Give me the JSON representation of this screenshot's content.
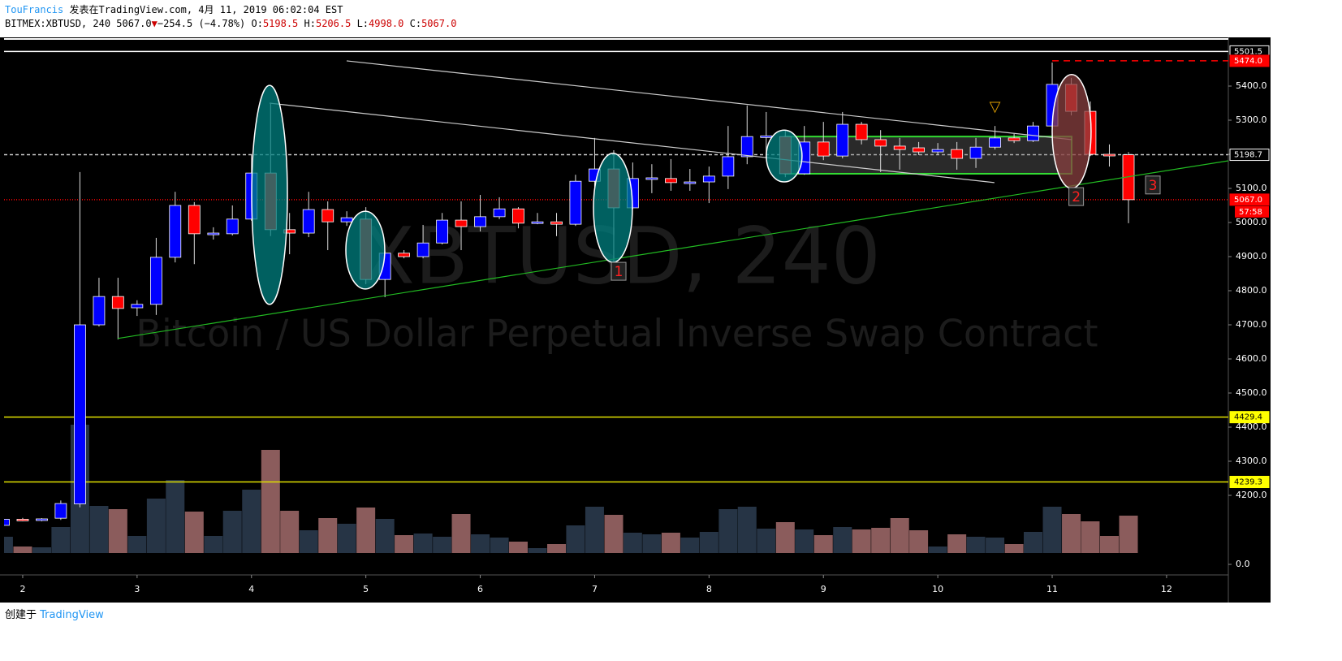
{
  "header": {
    "author": "TouFrancis",
    "published": "发表在TradingView.com, 4月 11, 2019 06:02:04 EST",
    "symbol": "BITMEX:XBTUSD, 240",
    "last": "5067.0",
    "arrow": "▼",
    "change": "−254.5 (−4.78%)",
    "o_label": "O:",
    "o": "5198.5",
    "h_label": "H:",
    "h": "5206.5",
    "l_label": "L:",
    "l": "4998.0",
    "c_label": "C:",
    "c": "5067.0"
  },
  "footer": {
    "created": "创建于",
    "brand": "TradingView"
  },
  "chart_data": {
    "type": "candlestick",
    "watermark": "XBTUSD, 240",
    "subtitle": "Bitcoin / US Dollar Perpetual Inverse Swap Contract",
    "up_color": "#0000ff",
    "down_color": "#ff0000",
    "volume_up_color": "#2a3a4d",
    "volume_down_color": "#9a6666",
    "x": [
      1.833,
      2,
      2.167,
      2.333,
      2.5,
      2.667,
      2.833,
      3,
      3.167,
      3.333,
      3.5,
      3.667,
      3.833,
      4,
      4.167,
      4.333,
      4.5,
      4.667,
      4.833,
      5,
      5.167,
      5.333,
      5.5,
      5.667,
      5.833,
      6,
      6.167,
      6.333,
      6.5,
      6.667,
      6.833,
      7,
      7.167,
      7.333,
      7.5,
      7.667,
      7.833,
      8,
      8.167,
      8.333,
      8.5,
      8.667,
      8.833,
      9,
      9.167,
      9.333,
      9.5,
      9.667,
      9.833,
      10,
      10.167,
      10.333,
      10.5,
      10.667,
      10.833,
      11,
      11.167,
      11.333,
      11.5,
      11.667
    ],
    "open": [
      4112,
      4130,
      4127,
      4133,
      4175,
      4700,
      4783,
      4750,
      4760,
      4898,
      5050,
      4967,
      4967,
      5010,
      5145,
      4979,
      4969,
      5038,
      5002,
      5010,
      4833,
      4910,
      4900,
      4940,
      5007,
      4988,
      5017,
      5040,
      4998,
      5002,
      4995,
      5121,
      5157,
      5043,
      5129,
      5129,
      5117,
      5119,
      5136,
      5193,
      5252,
      5252,
      5143,
      5236,
      5195,
      5288,
      5243,
      5224,
      5219,
      5207,
      5214,
      5188,
      5221,
      5248,
      5240,
      5283,
      5405,
      5326,
      5200,
      5198.5
    ],
    "high": [
      4135,
      4134,
      4133,
      4185,
      5148,
      4838,
      4838,
      4772,
      4955,
      5090,
      5060,
      4986,
      5050,
      5200,
      5348,
      5028,
      5090,
      5062,
      5033,
      5045,
      4917,
      4919,
      4993,
      5028,
      5062,
      5081,
      5074,
      5045,
      5028,
      5028,
      5140,
      5248,
      5212,
      5176,
      5171,
      5186,
      5157,
      5164,
      5283,
      5343,
      5324,
      5271,
      5283,
      5295,
      5324,
      5295,
      5271,
      5248,
      5236,
      5233,
      5236,
      5248,
      5283,
      5260,
      5295,
      5469,
      5424,
      5355,
      5229,
      5206.5
    ],
    "low": [
      4105,
      4124,
      4124,
      4128,
      4165,
      4695,
      4657,
      4726,
      4729,
      4883,
      4878,
      4950,
      4962,
      5005,
      4960,
      4907,
      4957,
      4919,
      4990,
      4819,
      4781,
      4895,
      4895,
      4936,
      4919,
      4974,
      5010,
      4983,
      4995,
      4960,
      4990,
      5105,
      4881,
      5040,
      5086,
      5093,
      5093,
      5057,
      5098,
      5171,
      5188,
      5133,
      5140,
      5183,
      5188,
      5229,
      5148,
      5155,
      5198,
      5198,
      5155,
      5160,
      5214,
      5233,
      5236,
      5271,
      5314,
      5195,
      5164,
      4998
    ],
    "close": [
      4130,
      4126,
      4131,
      4176,
      4700,
      4783,
      4748,
      4760,
      4898,
      5050,
      4967,
      4969,
      5010,
      5145,
      4979,
      4969,
      5038,
      5002,
      5014,
      4833,
      4910,
      4900,
      4940,
      5007,
      4988,
      5017,
      5040,
      4998,
      5002,
      4995,
      5121,
      5157,
      5043,
      5129,
      5131,
      5117,
      5119,
      5136,
      5193,
      5252,
      5254,
      5143,
      5236,
      5195,
      5288,
      5243,
      5224,
      5214,
      5207,
      5214,
      5188,
      5221,
      5248,
      5240,
      5283,
      5405,
      5326,
      5200,
      5199,
      5067
    ],
    "volume": [
      20,
      8,
      7,
      32,
      158,
      58,
      54,
      21,
      67,
      90,
      51,
      21,
      52,
      78,
      127,
      52,
      28,
      43,
      36,
      56,
      42,
      22,
      24,
      20,
      48,
      23,
      19,
      14,
      6,
      11,
      34,
      57,
      47,
      25,
      23,
      25,
      19,
      26,
      54,
      57,
      30,
      38,
      29,
      22,
      32,
      29,
      31,
      43,
      28,
      8,
      23,
      20,
      19,
      11,
      26,
      57,
      48,
      39,
      21,
      46
    ],
    "xlim": [
      1.837,
      12.54
    ],
    "xticks": [
      2,
      3,
      4,
      5,
      6,
      7,
      8,
      9,
      10,
      11,
      12
    ],
    "ylim": [
      3966.7,
      5540.5
    ],
    "yticks": [
      {
        "value": 4200,
        "label": "4200.0"
      },
      {
        "value": 4300,
        "label": "4300.0"
      },
      {
        "value": 4400,
        "label": "4400.0"
      },
      {
        "value": 4500,
        "label": "4500.0"
      },
      {
        "value": 4600,
        "label": "4600.0"
      },
      {
        "value": 4700,
        "label": "4700.0"
      },
      {
        "value": 4800,
        "label": "4800.0"
      },
      {
        "value": 4900,
        "label": "4900.0"
      },
      {
        "value": 5000,
        "label": "5000.0"
      },
      {
        "value": 5100,
        "label": "5100.0"
      },
      {
        "value": 5200,
        "label": "5200.0"
      },
      {
        "value": 5300,
        "label": "5300.0"
      },
      {
        "value": 5400,
        "label": "5400.0"
      }
    ],
    "y2lim": [
      0,
      160
    ],
    "y2ticks": [
      {
        "value": 0,
        "label": "0.0"
      }
    ],
    "price_levels": [
      {
        "value": 5501.5,
        "label": "5501.5",
        "color": "#ffffff",
        "dash": "none",
        "bg": "#000000",
        "fg": "#ffffff"
      },
      {
        "value": 5474.0,
        "label": "5474.0",
        "color": "#ff0000",
        "dash": "8 6",
        "bg": "#ff0000",
        "fg": "#ffffff",
        "from": 11
      },
      {
        "value": 5198.7,
        "label": "5198.7",
        "color": "#cccccc",
        "dash": "4 3",
        "bg": "#000000",
        "fg": "#ffffff"
      },
      {
        "value": 5067.0,
        "label": "5067.0",
        "color": "#ff0000",
        "dash": "1 2",
        "bg": "#ff0000",
        "fg": "#ffffff"
      },
      {
        "value": 4429.4,
        "label": "4429.4",
        "color": "#e0e000",
        "dash": "none",
        "bg": "#ffff00",
        "fg": "#000000"
      },
      {
        "value": 4239.3,
        "label": "4239.3",
        "color": "#e0e000",
        "dash": "none",
        "bg": "#ffff00",
        "fg": "#000000"
      }
    ],
    "countdown": "57:58",
    "trend_lines": [
      {
        "x": [
          4.832,
          11.17
        ],
        "y": [
          5474,
          5243
        ],
        "color": "#cccccc"
      },
      {
        "x": [
          4.158,
          10.495
        ],
        "y": [
          5350,
          5117
        ],
        "color": "#cccccc"
      },
      {
        "x": [
          2.83,
          12.54
        ],
        "y": [
          4660,
          5181
        ],
        "color": "#22bb22"
      }
    ],
    "rectangle": {
      "x": [
        8.664,
        11.17
      ],
      "y": [
        5143,
        5252
      ],
      "color": "#33dd33"
    },
    "ellipses": [
      {
        "cx": 4.158,
        "cy": 5081,
        "rx": 0.156,
        "ry": 321,
        "color": "#008080"
      },
      {
        "cx": 4.995,
        "cy": 4919,
        "rx": 0.17,
        "ry": 114,
        "color": "#008080"
      },
      {
        "cx": 7.16,
        "cy": 5043,
        "rx": 0.17,
        "ry": 160,
        "color": "#008080"
      },
      {
        "cx": 8.657,
        "cy": 5195,
        "rx": 0.156,
        "ry": 76,
        "color": "#008080"
      },
      {
        "cx": 11.17,
        "cy": 5267,
        "rx": 0.17,
        "ry": 167,
        "color": "#8a4040"
      }
    ],
    "markers": [
      {
        "x": 7.21,
        "y": 4857,
        "label": "1"
      },
      {
        "x": 11.21,
        "y": 5076,
        "label": "2"
      },
      {
        "x": 11.88,
        "y": 5110,
        "label": "3"
      }
    ],
    "signal": {
      "x": 10.5,
      "y": 5338,
      "label": "▽"
    }
  }
}
